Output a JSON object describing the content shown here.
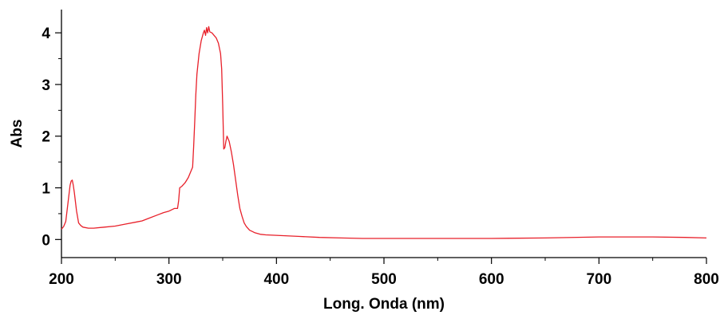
{
  "chart_data": {
    "type": "line",
    "title": "",
    "xlabel": "Long. Onda (nm)",
    "ylabel": "Abs",
    "xlim": [
      200,
      800
    ],
    "ylim": [
      -0.35,
      4.45
    ],
    "xticks": [
      200,
      300,
      400,
      500,
      600,
      700,
      800
    ],
    "yticks": [
      0,
      1,
      2,
      3,
      4
    ],
    "grid": false,
    "legend": "none",
    "series": [
      {
        "color": "#e8202a",
        "x": [
          200,
          202,
          204,
          206,
          208,
          209,
          210,
          211,
          212,
          214,
          216,
          218,
          220,
          225,
          230,
          240,
          250,
          260,
          270,
          275,
          280,
          290,
          295,
          300,
          305,
          308,
          309,
          310,
          312,
          315,
          318,
          320,
          322,
          323,
          324,
          325,
          326,
          328,
          330,
          332,
          333,
          334,
          335,
          336,
          337,
          338,
          340,
          342,
          344,
          346,
          348,
          349,
          350,
          351,
          352,
          353,
          354,
          356,
          358,
          360,
          362,
          364,
          366,
          368,
          370,
          372,
          375,
          378,
          380,
          385,
          390,
          400,
          420,
          440,
          460,
          480,
          500,
          550,
          600,
          650,
          700,
          750,
          780,
          800
        ],
        "y": [
          0.2,
          0.25,
          0.35,
          0.7,
          1.05,
          1.13,
          1.15,
          1.05,
          0.9,
          0.55,
          0.32,
          0.27,
          0.24,
          0.22,
          0.22,
          0.24,
          0.26,
          0.3,
          0.34,
          0.36,
          0.4,
          0.48,
          0.52,
          0.55,
          0.6,
          0.6,
          0.75,
          1.0,
          1.03,
          1.1,
          1.2,
          1.3,
          1.4,
          1.8,
          2.3,
          2.8,
          3.2,
          3.6,
          3.85,
          4.0,
          4.05,
          3.95,
          4.1,
          4.0,
          4.12,
          4.02,
          4.0,
          3.95,
          3.9,
          3.8,
          3.6,
          3.3,
          2.6,
          1.75,
          1.78,
          1.9,
          2.0,
          1.9,
          1.7,
          1.45,
          1.15,
          0.85,
          0.6,
          0.45,
          0.32,
          0.25,
          0.18,
          0.15,
          0.13,
          0.1,
          0.09,
          0.08,
          0.06,
          0.04,
          0.03,
          0.02,
          0.02,
          0.02,
          0.02,
          0.03,
          0.05,
          0.05,
          0.04,
          0.03
        ]
      }
    ]
  }
}
